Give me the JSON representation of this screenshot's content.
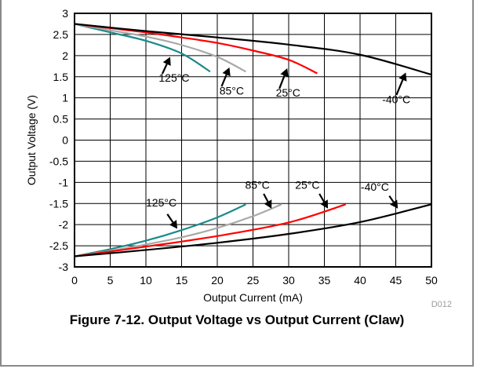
{
  "caption": "Figure 7-12. Output Voltage vs Output Current (Claw)",
  "figure_code": "D012",
  "chart_data": {
    "type": "line",
    "xlabel": "Output Current (mA)",
    "ylabel": "Output Voltage (V)",
    "xlim": [
      0,
      50
    ],
    "ylim": [
      -3,
      3
    ],
    "xticks": [
      0,
      5,
      10,
      15,
      20,
      25,
      30,
      35,
      40,
      45,
      50
    ],
    "yticks": [
      3,
      2.5,
      2,
      1.5,
      1,
      0.5,
      0,
      -0.5,
      -1,
      -1.5,
      -2,
      -2.5,
      -3
    ],
    "ytick_labels": [
      "3",
      "2.5",
      "2",
      "1.5",
      "1",
      "0.5",
      "0",
      "-0.5",
      "-1",
      "-1.5",
      "-2",
      "-2.5",
      "-3"
    ],
    "grid": true,
    "series": [
      {
        "id": "pos-125",
        "color": "#1a8a8a",
        "x": [
          0,
          5,
          10,
          15,
          19
        ],
        "y": [
          2.75,
          2.55,
          2.35,
          2.05,
          1.62
        ]
      },
      {
        "id": "pos-85",
        "color": "#a9a9a9",
        "x": [
          0,
          5,
          10,
          15,
          20,
          24
        ],
        "y": [
          2.75,
          2.6,
          2.45,
          2.25,
          1.97,
          1.62
        ]
      },
      {
        "id": "pos-25",
        "color": "#ff0000",
        "x": [
          0,
          5,
          10,
          15,
          20,
          25,
          30,
          34
        ],
        "y": [
          2.75,
          2.65,
          2.55,
          2.43,
          2.3,
          2.12,
          1.9,
          1.58
        ]
      },
      {
        "id": "pos-m40",
        "color": "#000000",
        "x": [
          0,
          10,
          20,
          30,
          40,
          50
        ],
        "y": [
          2.75,
          2.58,
          2.43,
          2.26,
          2.02,
          1.55
        ]
      },
      {
        "id": "neg-125",
        "color": "#1a8a8a",
        "x": [
          0,
          5,
          10,
          15,
          20,
          24
        ],
        "y": [
          -2.75,
          -2.58,
          -2.38,
          -2.13,
          -1.83,
          -1.52
        ]
      },
      {
        "id": "neg-85",
        "color": "#a9a9a9",
        "x": [
          0,
          5,
          10,
          15,
          20,
          25,
          29
        ],
        "y": [
          -2.75,
          -2.62,
          -2.47,
          -2.3,
          -2.08,
          -1.8,
          -1.52
        ]
      },
      {
        "id": "neg-25",
        "color": "#ff0000",
        "x": [
          0,
          10,
          20,
          30,
          38
        ],
        "y": [
          -2.75,
          -2.52,
          -2.27,
          -1.95,
          -1.52
        ]
      },
      {
        "id": "neg-m40",
        "color": "#000000",
        "x": [
          0,
          10,
          20,
          30,
          40,
          50
        ],
        "y": [
          -2.75,
          -2.6,
          -2.43,
          -2.22,
          -1.94,
          -1.52
        ]
      }
    ],
    "annotations": [
      {
        "text": "125°C",
        "label_x": 11.8,
        "label_y": 1.38,
        "arrow_from": [
          12.3,
          1.57
        ],
        "arrow_to": [
          13.4,
          1.97
        ]
      },
      {
        "text": "85°C",
        "label_x": 20.3,
        "label_y": 1.08,
        "arrow_from": [
          20.6,
          1.27
        ],
        "arrow_to": [
          21.7,
          1.72
        ]
      },
      {
        "text": "25°C",
        "label_x": 28.2,
        "label_y": 1.03,
        "arrow_from": [
          28.7,
          1.22
        ],
        "arrow_to": [
          29.8,
          1.7
        ]
      },
      {
        "text": "-40°C",
        "label_x": 43.1,
        "label_y": 0.87,
        "arrow_from": [
          45.1,
          1.07
        ],
        "arrow_to": [
          46.4,
          1.6
        ]
      },
      {
        "text": "85°C",
        "label_x": 23.9,
        "label_y": -1.15,
        "arrow_from": [
          26.5,
          -1.27
        ],
        "arrow_to": [
          27.6,
          -1.62
        ]
      },
      {
        "text": "25°C",
        "label_x": 30.9,
        "label_y": -1.15,
        "arrow_from": [
          34.3,
          -1.27
        ],
        "arrow_to": [
          35.5,
          -1.62
        ]
      },
      {
        "text": "-40°C",
        "label_x": 40.1,
        "label_y": -1.2,
        "arrow_from": [
          44.1,
          -1.32
        ],
        "arrow_to": [
          45.3,
          -1.62
        ]
      },
      {
        "text": "125°C",
        "label_x": 10.0,
        "label_y": -1.57,
        "arrow_from": [
          13.0,
          -1.75
        ],
        "arrow_to": [
          14.4,
          -2.1
        ]
      }
    ]
  }
}
